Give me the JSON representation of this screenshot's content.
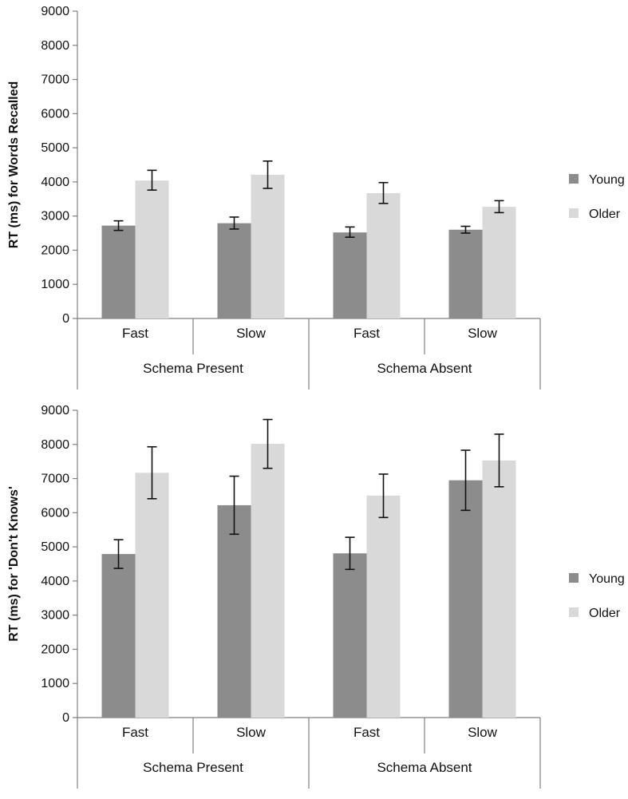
{
  "colors": {
    "young": "#8c8c8c",
    "older": "#d9d9d9"
  },
  "chart_data": [
    {
      "type": "bar",
      "ylabel": "RT (ms) for Words Recalled",
      "ylim": [
        0,
        9000
      ],
      "yticks": [
        "0",
        "1000",
        "2000",
        "3000",
        "4000",
        "5000",
        "6000",
        "7000",
        "8000",
        "9000"
      ],
      "categories": [
        "Fast",
        "Slow",
        "Fast",
        "Slow"
      ],
      "groups": [
        "Schema Present",
        "Schema Absent"
      ],
      "legend_position": "right",
      "series": [
        {
          "name": "Young",
          "color": "#8c8c8c",
          "values": [
            2720,
            2790,
            2520,
            2600
          ],
          "err_low": [
            2580,
            2620,
            2380,
            2500
          ],
          "err_high": [
            2860,
            2970,
            2680,
            2700
          ]
        },
        {
          "name": "Older",
          "color": "#d9d9d9",
          "values": [
            4040,
            4210,
            3670,
            3270
          ],
          "err_low": [
            3760,
            3810,
            3370,
            3100
          ],
          "err_high": [
            4340,
            4610,
            3980,
            3450
          ]
        }
      ]
    },
    {
      "type": "bar",
      "ylabel": "RT (ms) for 'Don't Knows'",
      "ylim": [
        0,
        9000
      ],
      "yticks": [
        "0",
        "1000",
        "2000",
        "3000",
        "4000",
        "5000",
        "6000",
        "7000",
        "8000",
        "9000"
      ],
      "categories": [
        "Fast",
        "Slow",
        "Fast",
        "Slow"
      ],
      "groups": [
        "Schema Present",
        "Schema Absent"
      ],
      "legend_position": "right",
      "series": [
        {
          "name": "Young",
          "color": "#8c8c8c",
          "values": [
            4790,
            6220,
            4810,
            6950
          ],
          "err_low": [
            4370,
            5370,
            4340,
            6070
          ],
          "err_high": [
            5210,
            7070,
            5280,
            7830
          ]
        },
        {
          "name": "Older",
          "color": "#d9d9d9",
          "values": [
            7170,
            8020,
            6500,
            7530
          ],
          "err_low": [
            6410,
            7300,
            5860,
            6760
          ],
          "err_high": [
            7930,
            8730,
            7130,
            8300
          ]
        }
      ]
    }
  ]
}
